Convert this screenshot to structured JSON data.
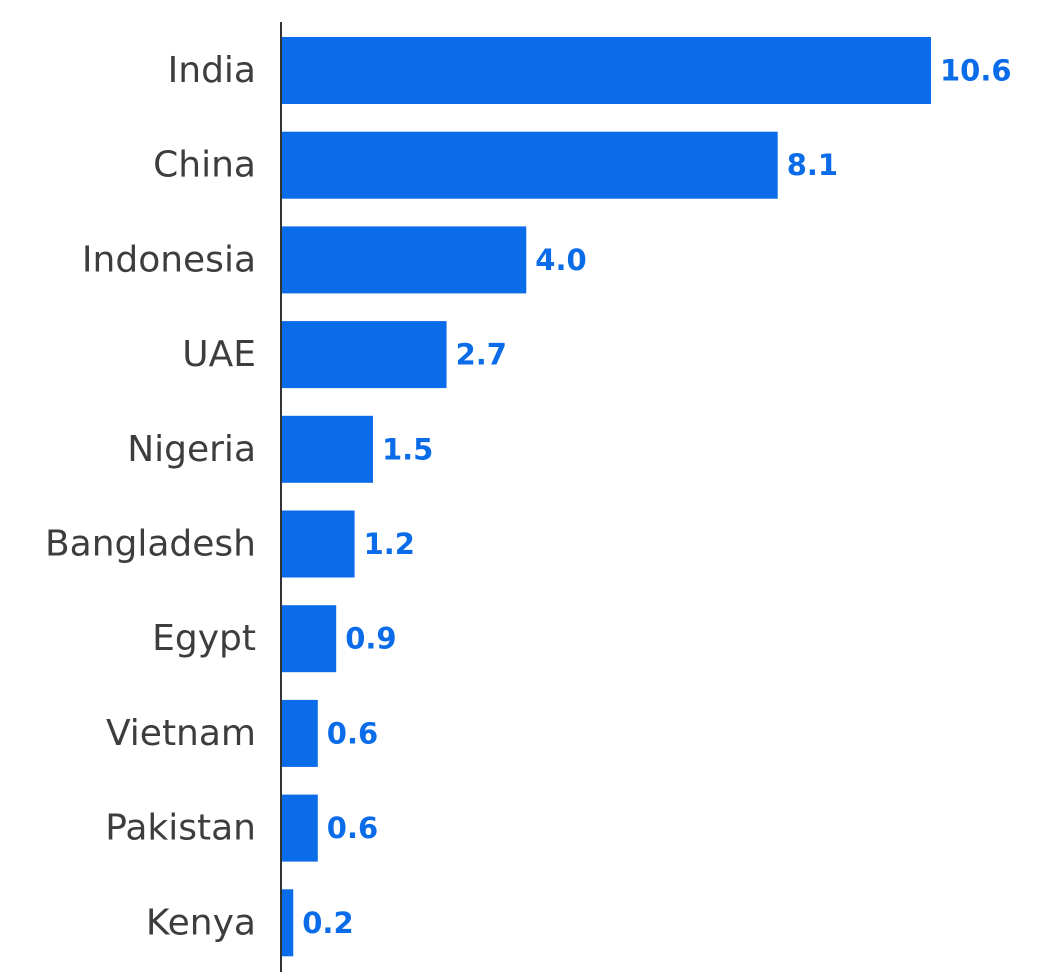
{
  "chart_data": {
    "type": "bar",
    "orientation": "horizontal",
    "categories": [
      "India",
      "China",
      "Indonesia",
      "UAE",
      "Nigeria",
      "Bangladesh",
      "Egypt",
      "Vietnam",
      "Pakistan",
      "Kenya"
    ],
    "values": [
      10.6,
      8.1,
      4.0,
      2.7,
      1.5,
      1.2,
      0.9,
      0.6,
      0.6,
      0.2
    ],
    "value_labels": [
      "10.6",
      "8.1",
      "4.0",
      "2.7",
      "1.5",
      "1.2",
      "0.9",
      "0.6",
      "0.6",
      "0.2"
    ],
    "title": "",
    "xlabel": "",
    "ylabel": "",
    "xlim": [
      0,
      10.6
    ],
    "grid": false,
    "legend": "none",
    "colors": {
      "bar": "#0a6ce8",
      "value_label": "#0a6ce8",
      "category_label": "#3d3d3d",
      "axis": "#333333"
    }
  }
}
